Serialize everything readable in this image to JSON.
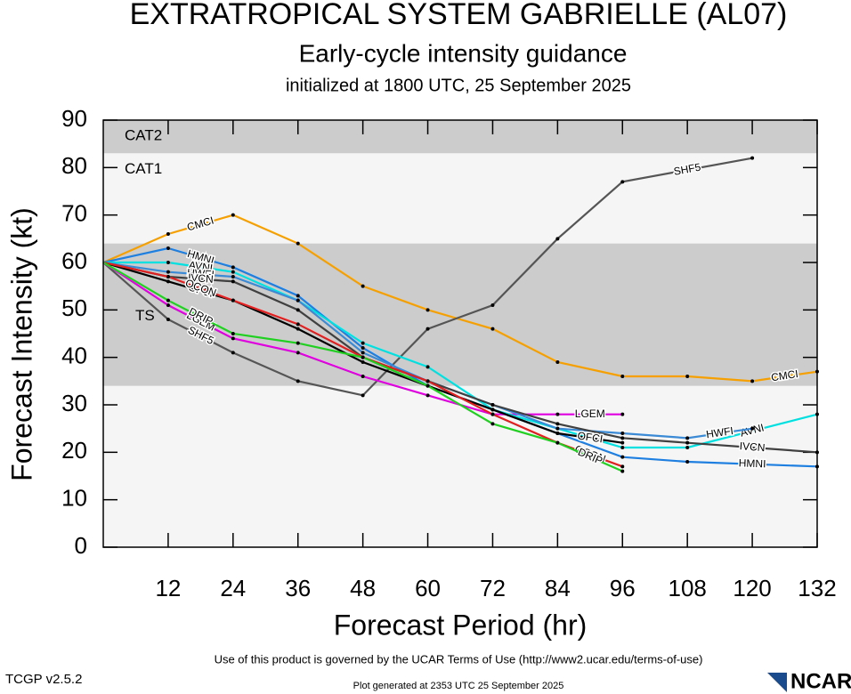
{
  "chart_data": {
    "type": "line",
    "title": "EXTRATROPICAL SYSTEM GABRIELLE (AL07)",
    "subtitle": "Early-cycle intensity guidance",
    "initialized": "initialized at 1800 UTC, 25 September 2025",
    "xlabel": "Forecast Period (hr)",
    "ylabel": "Forecast Intensity (kt)",
    "xlim": [
      0,
      132
    ],
    "ylim": [
      0,
      90
    ],
    "xticks": [
      12,
      24,
      36,
      48,
      60,
      72,
      84,
      96,
      108,
      120,
      132
    ],
    "yticks": [
      0,
      10,
      20,
      30,
      40,
      50,
      60,
      70,
      80,
      90
    ],
    "background_color": "#f5f5f5",
    "bands": [
      {
        "label": "CAT2",
        "from": 83,
        "to": 90,
        "color": "#cccccc"
      },
      {
        "label": "CAT1",
        "from": 64,
        "to": 83,
        "color": "#f5f5f5"
      },
      {
        "label": "TS",
        "from": 34,
        "to": 64,
        "color": "#cccccc"
      }
    ],
    "series": [
      {
        "name": "CMCI",
        "color": "#f5a000",
        "x": [
          0,
          12,
          24,
          36,
          48,
          60,
          72,
          84,
          96,
          108,
          120,
          132
        ],
        "values": [
          60,
          66,
          70,
          64,
          55,
          50,
          46,
          39,
          36,
          36,
          35,
          37
        ]
      },
      {
        "name": "SHF5",
        "color": "#555555",
        "x": [
          0,
          12,
          24,
          36,
          48,
          60,
          72,
          84,
          96,
          120
        ],
        "values": [
          60,
          48,
          41,
          35,
          32,
          46,
          51,
          65,
          77,
          82
        ]
      },
      {
        "name": "LGEM",
        "color": "#e000e0",
        "x": [
          0,
          12,
          24,
          36,
          48,
          60,
          72,
          84,
          96
        ],
        "values": [
          60,
          51,
          44,
          41,
          36,
          32,
          28,
          28,
          28
        ]
      },
      {
        "name": "HMNI",
        "color": "#1e7fe0",
        "x": [
          0,
          12,
          24,
          36,
          48,
          60,
          72,
          84,
          96,
          108,
          132
        ],
        "values": [
          60,
          63,
          59,
          53,
          42,
          34,
          29,
          24,
          19,
          18,
          17
        ]
      },
      {
        "name": "AVNI",
        "color": "#00e0e0",
        "x": [
          0,
          12,
          24,
          36,
          48,
          60,
          72,
          84,
          96,
          108,
          132
        ],
        "values": [
          60,
          60,
          58,
          52,
          43,
          38,
          29,
          25,
          21,
          21,
          28
        ]
      },
      {
        "name": "HWFI",
        "color": "#3a8ad6",
        "x": [
          0,
          12,
          24,
          36,
          48,
          60,
          72,
          84,
          96,
          108,
          120
        ],
        "values": [
          60,
          58,
          57,
          52,
          41,
          35,
          30,
          25,
          24,
          23,
          25
        ]
      },
      {
        "name": "IVCN",
        "color": "#404040",
        "x": [
          0,
          12,
          24,
          36,
          48,
          60,
          72,
          84,
          96,
          108,
          132
        ],
        "values": [
          60,
          57,
          56,
          50,
          40,
          35,
          30,
          26,
          23,
          22,
          20
        ]
      },
      {
        "name": "OFCI",
        "color": "#000000",
        "x": [
          0,
          12,
          24,
          36,
          48,
          60,
          72,
          84,
          96
        ],
        "values": [
          60,
          56,
          52,
          46,
          39,
          34,
          29,
          24,
          22
        ]
      },
      {
        "name": "OCON",
        "color": "#e02020",
        "x": [
          0,
          12,
          24,
          36,
          48,
          60,
          72,
          84,
          96
        ],
        "values": [
          60,
          57,
          52,
          47,
          40,
          35,
          28,
          22,
          17
        ]
      },
      {
        "name": "DRIP",
        "color": "#20d020",
        "x": [
          0,
          12,
          24,
          36,
          48,
          60,
          72,
          84,
          96
        ],
        "values": [
          60,
          52,
          45,
          43,
          40,
          34,
          26,
          22,
          16
        ]
      }
    ],
    "terms": "Use of this product is governed by the UCAR Terms of Use (http://www2.ucar.edu/terms-of-use)",
    "version": "TCGP v2.5.2",
    "generated": "Plot generated at 2353 UTC   25 September 2025",
    "logo": "NCAR"
  }
}
